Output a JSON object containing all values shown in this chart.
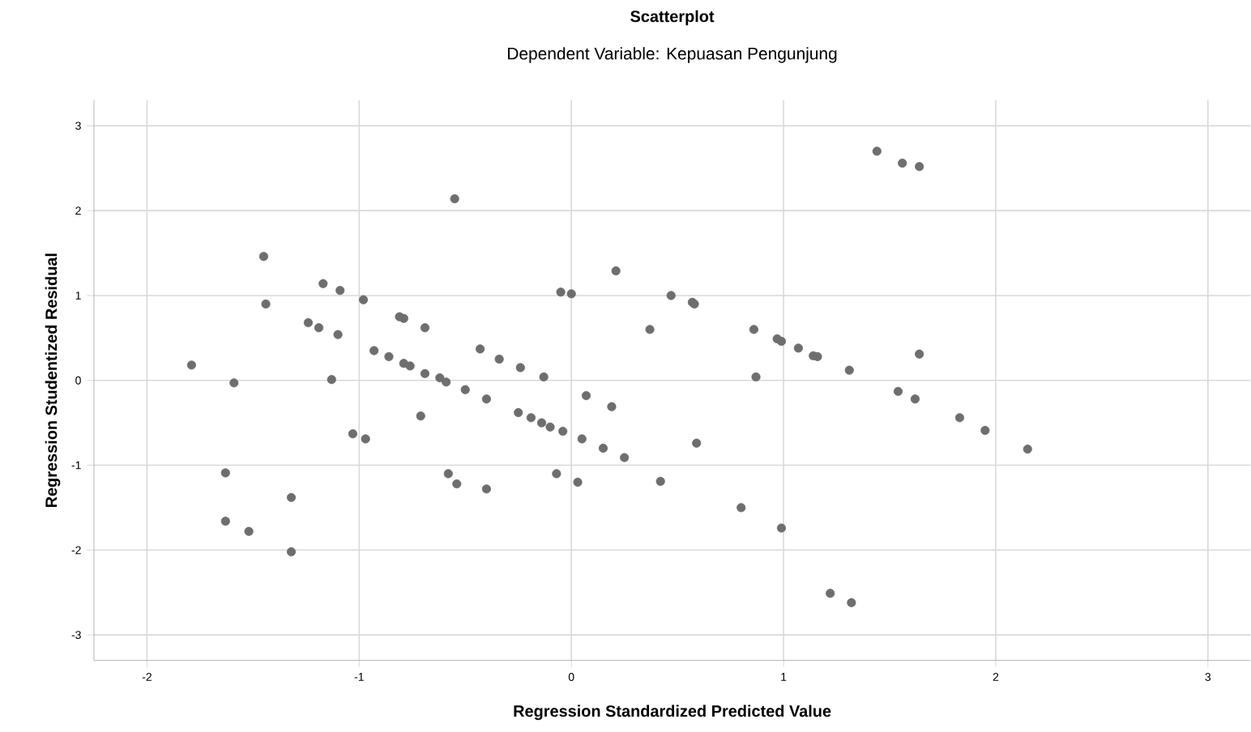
{
  "chart_data": {
    "type": "scatter",
    "title": "Scatterplot",
    "subtitle": "Dependent Variable: Kepuasan Pengunjung",
    "xlabel": "Regression Standardized Predicted Value",
    "ylabel": "Regression Studentized Residual",
    "xlim": [
      -2.25,
      3.2
    ],
    "ylim": [
      -3.3,
      3.3
    ],
    "xticks": [
      -2,
      -1,
      0,
      1,
      2,
      3
    ],
    "yticks": [
      -3,
      -2,
      -1,
      0,
      1,
      2,
      3
    ],
    "grid": true,
    "marker": "circle",
    "series": [
      {
        "color": "#6e6e6e",
        "x": [
          -1.79,
          -1.59,
          -1.45,
          -1.44,
          -1.63,
          -1.63,
          -1.52,
          -1.32,
          -1.32,
          -1.17,
          -1.09,
          -0.98,
          -1.24,
          -1.19,
          -1.1,
          -1.13,
          -1.03,
          -0.97,
          -0.93,
          -0.86,
          -0.81,
          -0.79,
          -0.69,
          -0.79,
          -0.76,
          -0.69,
          -0.71,
          -0.62,
          -0.59,
          -0.55,
          -0.5,
          -0.43,
          -0.4,
          -0.34,
          -0.24,
          -0.13,
          -0.25,
          -0.19,
          -0.14,
          -0.1,
          -0.04,
          -0.58,
          -0.54,
          -0.4,
          -0.07,
          0.03,
          -0.05,
          0.0,
          0.05,
          0.07,
          0.15,
          0.19,
          0.21,
          0.25,
          0.37,
          0.42,
          0.47,
          0.57,
          0.58,
          0.59,
          0.86,
          0.87,
          0.8,
          0.97,
          0.99,
          0.99,
          1.07,
          1.14,
          1.16,
          1.31,
          1.22,
          1.32,
          1.44,
          1.56,
          1.64,
          1.64,
          1.54,
          1.62,
          1.83,
          1.95,
          2.15
        ],
        "values": [
          0.18,
          -0.03,
          1.46,
          0.9,
          -1.09,
          -1.66,
          -1.78,
          -1.38,
          -2.02,
          1.14,
          1.06,
          0.95,
          0.68,
          0.62,
          0.54,
          0.01,
          -0.63,
          -0.69,
          0.35,
          0.28,
          0.75,
          0.73,
          0.62,
          0.2,
          0.17,
          0.08,
          -0.42,
          0.03,
          -0.02,
          2.14,
          -0.11,
          0.37,
          -0.22,
          0.25,
          0.15,
          0.04,
          -0.38,
          -0.44,
          -0.5,
          -0.55,
          -0.6,
          -1.1,
          -1.22,
          -1.28,
          -1.1,
          -1.2,
          1.04,
          1.02,
          -0.69,
          -0.18,
          -0.8,
          -0.31,
          1.29,
          -0.91,
          0.6,
          -1.19,
          1.0,
          0.92,
          0.9,
          -0.74,
          0.6,
          0.04,
          -1.5,
          0.49,
          0.46,
          -1.74,
          0.38,
          0.29,
          0.28,
          0.12,
          -2.51,
          -2.62,
          2.7,
          2.56,
          2.52,
          0.31,
          -0.13,
          -0.22,
          -0.44,
          -0.59,
          -0.81
        ]
      }
    ]
  }
}
